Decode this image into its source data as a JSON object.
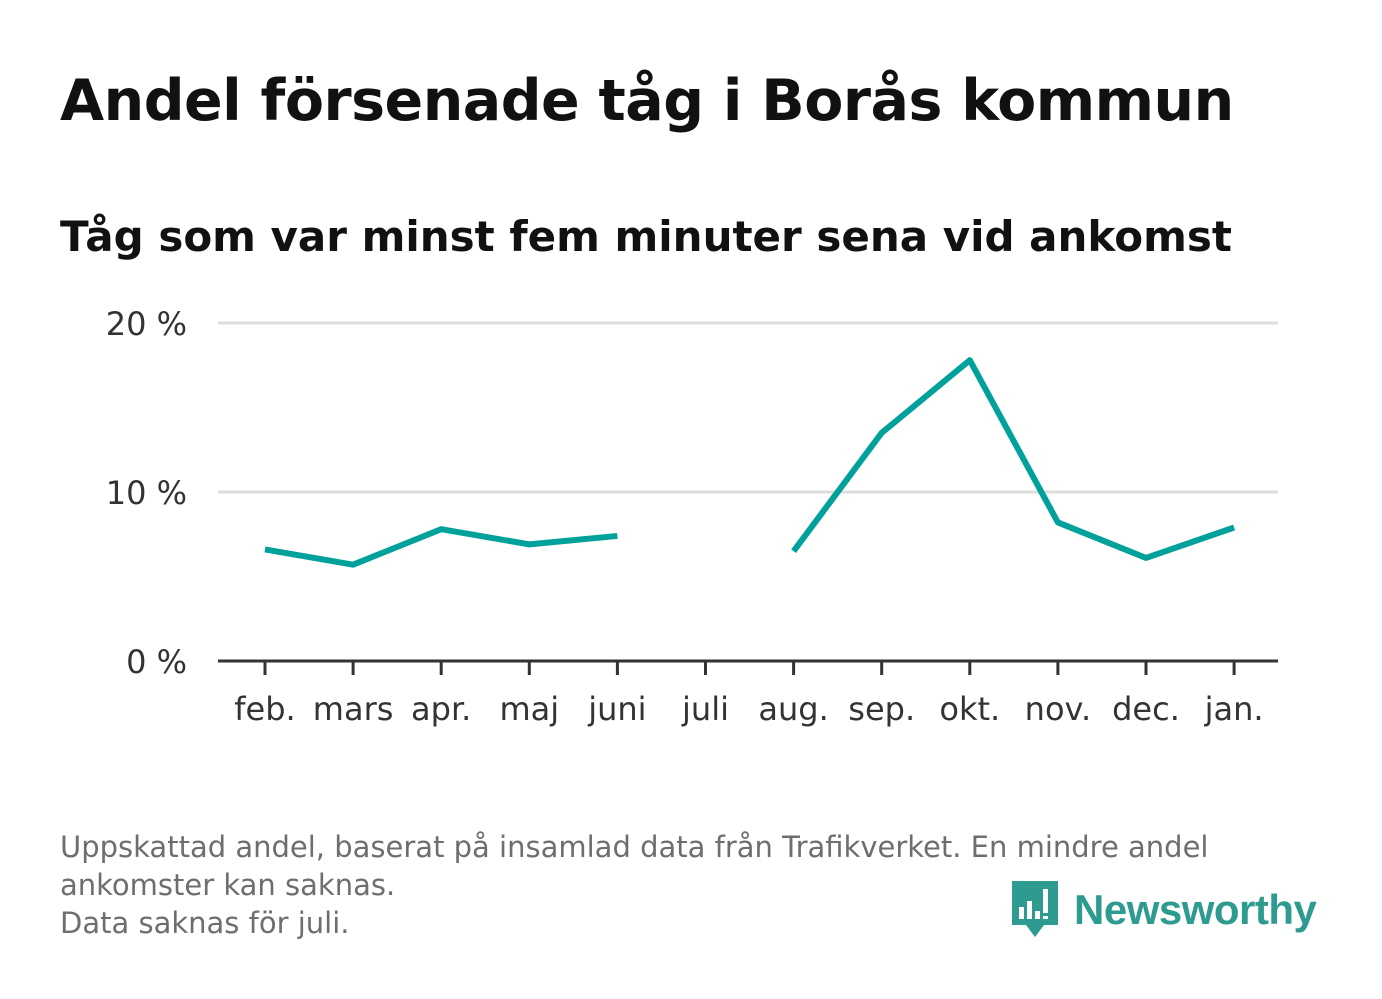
{
  "title": "Andel försenade tåg i Borås kommun",
  "subtitle": "Tåg som var minst fem minuter sena vid ankomst",
  "colors": {
    "line": "#00a19a",
    "grid": "#dddddd",
    "axis": "#333333",
    "brand": "#2d9b8f"
  },
  "chart_data": {
    "type": "line",
    "categories": [
      "feb.",
      "mars",
      "apr.",
      "maj",
      "juni",
      "juli",
      "aug.",
      "sep.",
      "okt.",
      "nov.",
      "dec.",
      "jan."
    ],
    "series": [
      {
        "values": [
          6.6,
          5.7,
          7.8,
          6.9,
          7.4,
          null,
          6.5,
          13.5,
          17.8,
          8.2,
          6.1,
          7.9
        ]
      }
    ],
    "ylim": [
      0,
      20
    ],
    "yticks": [
      0,
      10,
      20
    ],
    "ytick_labels": [
      "0 %",
      "10 %",
      "20 %"
    ],
    "xlabel": "",
    "ylabel": "",
    "grid": true
  },
  "footnote": {
    "lines": [
      "Uppskattad andel, baserat på insamlad data från Trafikverket. En mindre andel",
      "ankomster kan saknas.",
      "Data saknas för juli."
    ]
  },
  "brand": {
    "name": "Newsworthy",
    "icon": "newsworthy-logo-icon"
  }
}
